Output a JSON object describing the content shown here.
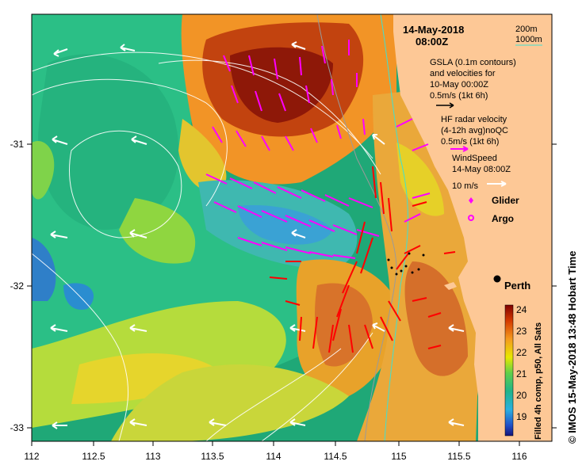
{
  "map": {
    "date_line1": "14-May-2018",
    "date_line2": "08:00Z",
    "depth_200": "200m",
    "depth_1000": "1000m",
    "gsla_line1": "GSLA (0.1m contours)",
    "gsla_line2": "and velocities for",
    "gsla_line3": "10-May 00:00Z",
    "gsla_scale": "0.5m/s (1kt 6h)",
    "hf_line1": "HF radar velocity",
    "hf_line2": "(4-12h avg)noQC",
    "hf_scale": "0.5m/s (1kt 6h)",
    "wind_line1": "WindSpeed",
    "wind_line2": "14-May 08:00Z",
    "wind_scale": "10 m/s",
    "glider_label": "Glider",
    "argo_label": "Argo",
    "city_label": "Perth",
    "colorbar_title": "Filled 4h comp, p50, All Sats",
    "colorbar_ticks": [
      "24",
      "23",
      "22",
      "21",
      "20",
      "19"
    ],
    "side_label": "© IMOS 15-May-2018 13:48 Hobart Time",
    "x_ticks": [
      "112",
      "112.5",
      "113",
      "113.5",
      "114",
      "114.5",
      "115",
      "115.5",
      "116"
    ],
    "y_ticks": [
      "-31",
      "-32",
      "-33"
    ],
    "colors": {
      "land": "#fdc896",
      "hf_arrow": "#ff00ff",
      "gsla_arrow": "#ff0000",
      "wind_arrow": "#ffffff",
      "isobath_200": "#9a9a9a",
      "isobath_1000": "#40e0d0"
    },
    "icons": [
      "glider-icon",
      "argo-icon",
      "city-dot-icon"
    ]
  }
}
